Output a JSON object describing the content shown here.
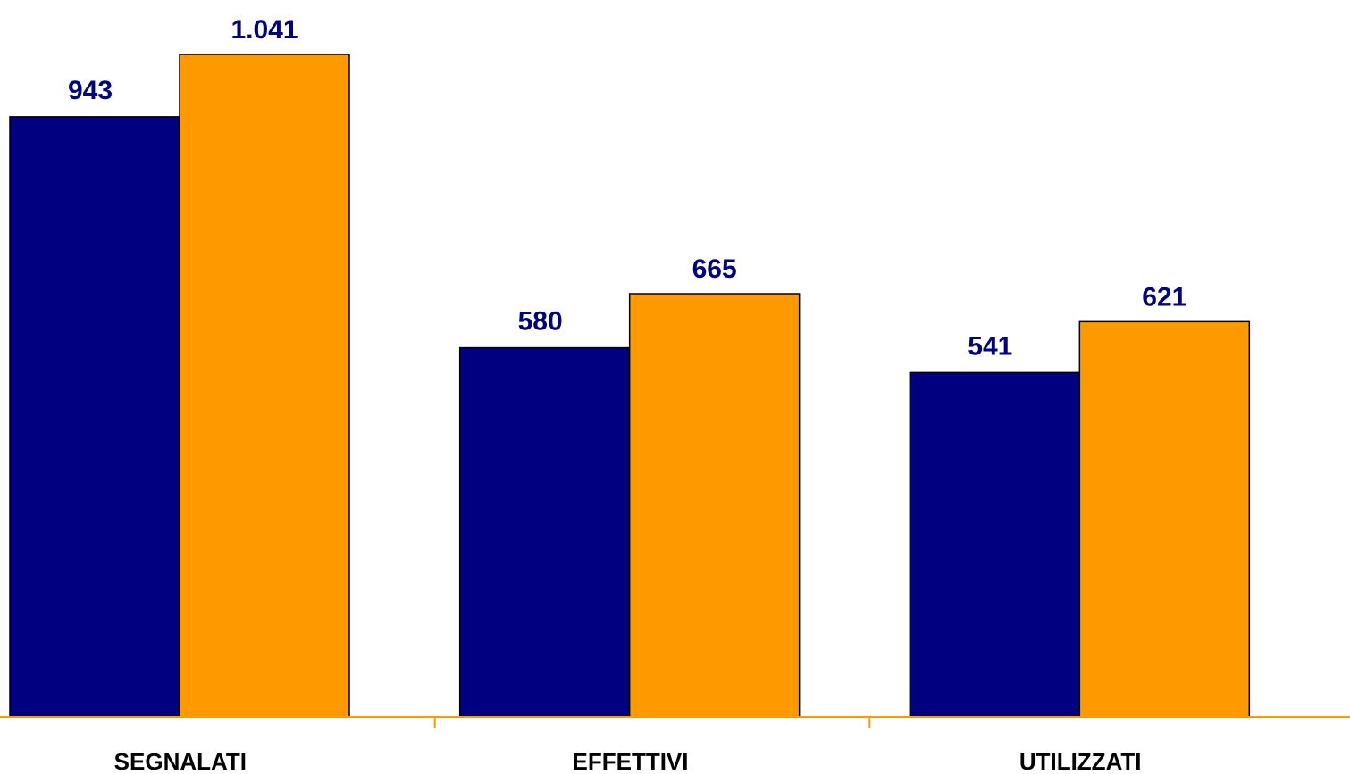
{
  "chart_data": {
    "type": "bar",
    "categories": [
      "SEGNALATI",
      "EFFETTIVI",
      "UTILIZZATI"
    ],
    "series": [
      {
        "values": [
          943,
          580,
          541
        ],
        "labels": [
          "943",
          "580",
          "541"
        ],
        "color": "#000080"
      },
      {
        "values": [
          1041,
          665,
          621
        ],
        "labels": [
          "1.041",
          "665",
          "621"
        ],
        "color": "#FF9900"
      }
    ],
    "ylim": [
      0,
      1041
    ],
    "grid": false,
    "legend": "none",
    "axis_color": "#FF9900",
    "label_color": "#000080"
  }
}
